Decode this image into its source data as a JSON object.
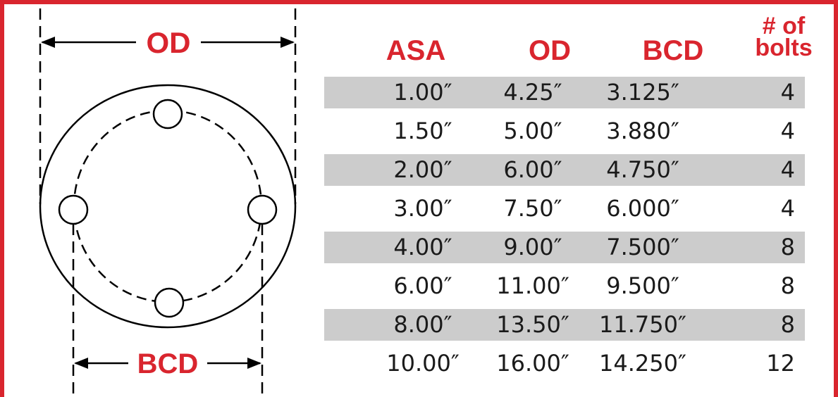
{
  "diagram": {
    "od_label": "OD",
    "bcd_label": "BCD",
    "bolt_count": 4,
    "accent_color": "#d9252e",
    "line_color": "#000000"
  },
  "table": {
    "headers": {
      "asa": "ASA",
      "od": "OD",
      "bcd": "BCD",
      "bolts_line1": "# of",
      "bolts_line2": "bolts"
    },
    "rows": [
      {
        "asa": "1.00″",
        "od": "4.25″",
        "bcd": "3.125″",
        "bolts": "4"
      },
      {
        "asa": "1.50″",
        "od": "5.00″",
        "bcd": "3.880″",
        "bolts": "4"
      },
      {
        "asa": "2.00″",
        "od": "6.00″",
        "bcd": "4.750″",
        "bolts": "4"
      },
      {
        "asa": "3.00″",
        "od": "7.50″",
        "bcd": "6.000″",
        "bolts": "4"
      },
      {
        "asa": "4.00″",
        "od": "9.00″",
        "bcd": "7.500″",
        "bolts": "8"
      },
      {
        "asa": "6.00″",
        "od": "11.00″",
        "bcd": "9.500″",
        "bolts": "8"
      },
      {
        "asa": "8.00″",
        "od": "13.50″",
        "bcd": "11.750″",
        "bolts": "8"
      },
      {
        "asa": "10.00″",
        "od": "16.00″",
        "bcd": "14.250″",
        "bolts": "12"
      }
    ],
    "shade_color": "#cccccc"
  }
}
